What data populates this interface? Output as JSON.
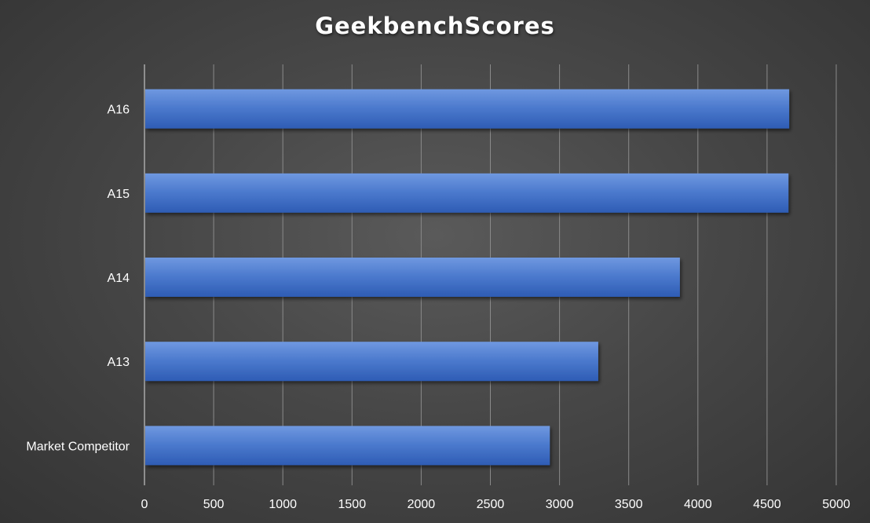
{
  "chart_data": {
    "type": "bar",
    "orientation": "horizontal",
    "title": "GeekbenchScores",
    "xlabel": "",
    "ylabel": "",
    "categories": [
      "A16",
      "A15",
      "A14",
      "A13",
      "Market Competitor"
    ],
    "values": [
      4660,
      4655,
      3870,
      3280,
      2930
    ],
    "xlim": [
      0,
      5000
    ],
    "xticks": [
      0,
      500,
      1000,
      1500,
      2000,
      2500,
      3000,
      3500,
      4000,
      4500,
      5000
    ],
    "grid": "vertical",
    "legend": "none",
    "colors": {
      "bar": "#4472c4",
      "bar_light": "#6a94de",
      "bar_dark": "#2f5db2",
      "gridline": "#8a8a8a",
      "text": "#ffffff"
    }
  }
}
